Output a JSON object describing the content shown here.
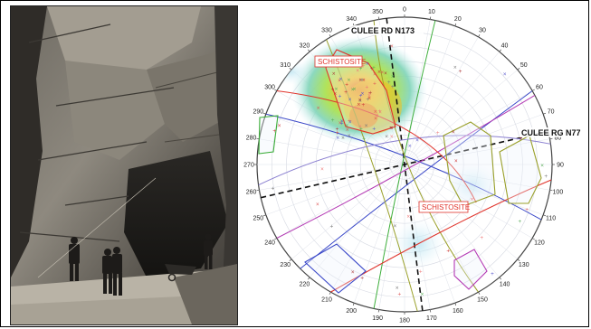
{
  "photo": {
    "description_icon": "rock-face-photo"
  },
  "stereonet": {
    "azimuth_labels": [
      "0",
      "10",
      "20",
      "30",
      "40",
      "50",
      "60",
      "70",
      "80",
      "90",
      "100",
      "110",
      "120",
      "130",
      "140",
      "150",
      "160",
      "170",
      "180",
      "190",
      "200",
      "210",
      "220",
      "230",
      "240",
      "250",
      "260",
      "270",
      "280",
      "290",
      "300",
      "310",
      "320",
      "330",
      "340",
      "350"
    ],
    "annotations": {
      "culee_rd": "CULEE RD N173",
      "culee_rg": "CULEE RG N77",
      "schistosite_top": "SCHISTOSITE",
      "schistosite_bottom": "SCHISTOSITE"
    },
    "colors": {
      "schistosite": "#e0332b",
      "density_high": "#f0c020",
      "density_mid": "#7dd35a",
      "density_low": "#bfe6f2",
      "set_blue": "#3a48c8",
      "set_green": "#3cae3a",
      "set_olive": "#9aa02a",
      "set_purple": "#b43ab4",
      "set_violet": "#8a7fd0"
    }
  }
}
